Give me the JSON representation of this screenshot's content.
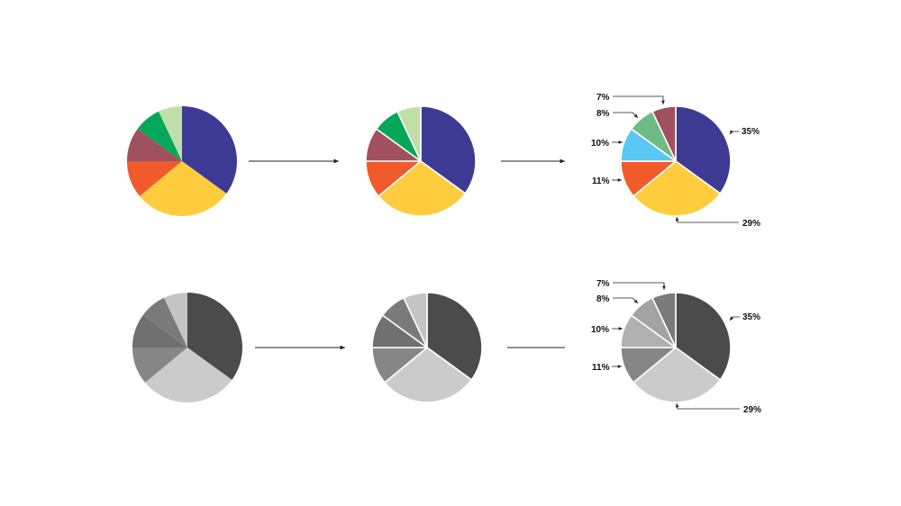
{
  "chart_data": [
    {
      "type": "pie",
      "variant": "color-unsorted",
      "labels_shown": false,
      "values": [
        35,
        29,
        11,
        10,
        8,
        7
      ],
      "colors": [
        "#3d3a94",
        "#fecc3d",
        "#f15a2b",
        "#a0505e",
        "#04a858",
        "#bfdfa8"
      ]
    },
    {
      "type": "pie",
      "variant": "color-separated",
      "labels_shown": false,
      "values": [
        35,
        29,
        11,
        10,
        8,
        7
      ],
      "colors": [
        "#3d3a94",
        "#fecc3d",
        "#f15a2b",
        "#a0505e",
        "#04a858",
        "#bfdfa8"
      ]
    },
    {
      "type": "pie",
      "variant": "color-labeled",
      "labels_shown": true,
      "values": [
        35,
        29,
        11,
        10,
        8,
        7
      ],
      "labels": [
        "35%",
        "29%",
        "11%",
        "10%",
        "8%",
        "7%"
      ],
      "colors": [
        "#3d3a94",
        "#fecc3d",
        "#f15a2b",
        "#5bc7f4",
        "#6fbb84",
        "#a0505e"
      ]
    },
    {
      "type": "pie",
      "variant": "gray-unsorted",
      "labels_shown": false,
      "values": [
        35,
        29,
        11,
        10,
        8,
        7
      ],
      "colors": [
        "#4b4b4b",
        "#cbcbcb",
        "#868686",
        "#707070",
        "#7a7a7a",
        "#c4c4c4"
      ]
    },
    {
      "type": "pie",
      "variant": "gray-separated",
      "labels_shown": false,
      "values": [
        35,
        29,
        11,
        10,
        8,
        7
      ],
      "colors": [
        "#4b4b4b",
        "#cbcbcb",
        "#868686",
        "#707070",
        "#7a7a7a",
        "#c4c4c4"
      ]
    },
    {
      "type": "pie",
      "variant": "gray-labeled",
      "labels_shown": true,
      "values": [
        35,
        29,
        11,
        10,
        8,
        7
      ],
      "labels": [
        "35%",
        "29%",
        "11%",
        "10%",
        "8%",
        "7%"
      ],
      "colors": [
        "#4b4b4b",
        "#cbcbcb",
        "#868686",
        "#b0b0b0",
        "#a3a3a3",
        "#7a7a7a"
      ]
    }
  ],
  "connectors": {
    "row1": [
      "arrow",
      "arrow"
    ],
    "row2": [
      "arrow",
      "line"
    ],
    "color": "#222222"
  }
}
